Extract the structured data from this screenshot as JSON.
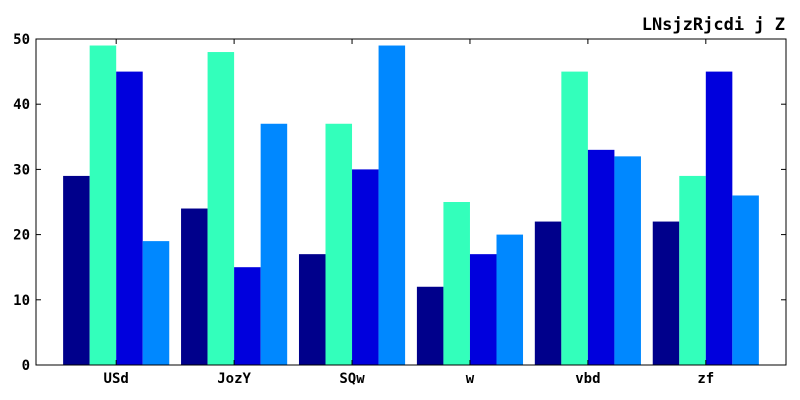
{
  "chart_data": {
    "type": "bar",
    "title": "LNsjzRjcdi j Z",
    "xlabel": "",
    "ylabel": "",
    "categories": [
      "USd",
      "JozY",
      "SQw",
      "w",
      "vbd",
      "zf"
    ],
    "ylim": [
      0,
      50
    ],
    "yticks": [
      0,
      10,
      20,
      30,
      40,
      50
    ],
    "grid": false,
    "legend": "none",
    "series": [
      {
        "color": "#00008b",
        "values": [
          29,
          24,
          17,
          12,
          22,
          22
        ]
      },
      {
        "color": "#33ffbb",
        "values": [
          49,
          48,
          37,
          25,
          45,
          29
        ]
      },
      {
        "color": "#0000dd",
        "values": [
          45,
          15,
          30,
          17,
          33,
          45
        ]
      },
      {
        "color": "#0088ff",
        "values": [
          19,
          37,
          49,
          20,
          32,
          26
        ]
      }
    ]
  }
}
